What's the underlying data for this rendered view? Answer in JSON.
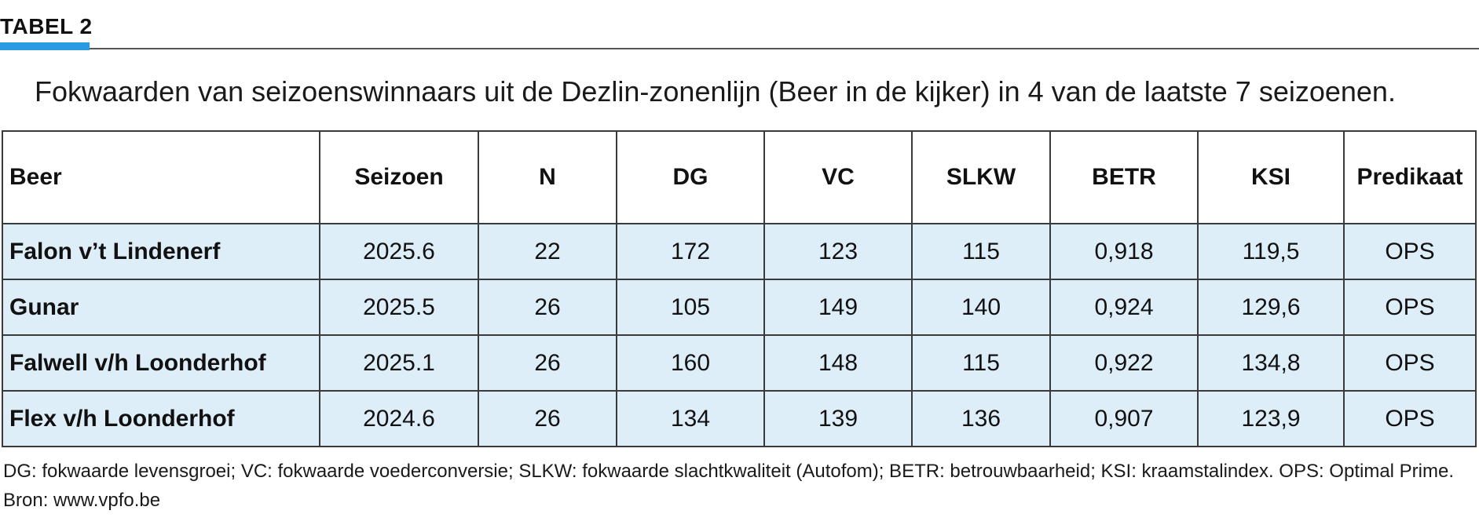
{
  "header": {
    "label": "TABEL 2",
    "accent_color": "#2a9be0"
  },
  "caption": "Fokwaarden van seizoenswinnaars uit de Dezlin-zonenlijn (Beer in de kijker) in 4 van de laatste 7 seizoenen.",
  "table": {
    "row_background": "#deeef9",
    "columns": [
      "Beer",
      "Seizoen",
      "N",
      "DG",
      "VC",
      "SLKW",
      "BETR",
      "KSI",
      "Predikaat"
    ],
    "rows": [
      [
        "Falon v’t Lindenerf",
        "2025.6",
        "22",
        "172",
        "123",
        "115",
        "0,918",
        "119,5",
        "OPS"
      ],
      [
        "Gunar",
        "2025.5",
        "26",
        "105",
        "149",
        "140",
        "0,924",
        "129,6",
        "OPS"
      ],
      [
        "Falwell v/h Loonderhof",
        "2025.1",
        "26",
        "160",
        "148",
        "115",
        "0,922",
        "134,8",
        "OPS"
      ],
      [
        "Flex v/h Loonderhof",
        "2024.6",
        "26",
        "134",
        "139",
        "136",
        "0,907",
        "123,9",
        "OPS"
      ]
    ]
  },
  "footnote": "DG: fokwaarde levensgroei; VC: fokwaarde voederconversie; SLKW: fokwaarde slachtkwaliteit (Autofom); BETR: betrouwbaarheid; KSI: kraamstalindex. OPS: Optimal Prime. Bron: www.vpfo.be"
}
